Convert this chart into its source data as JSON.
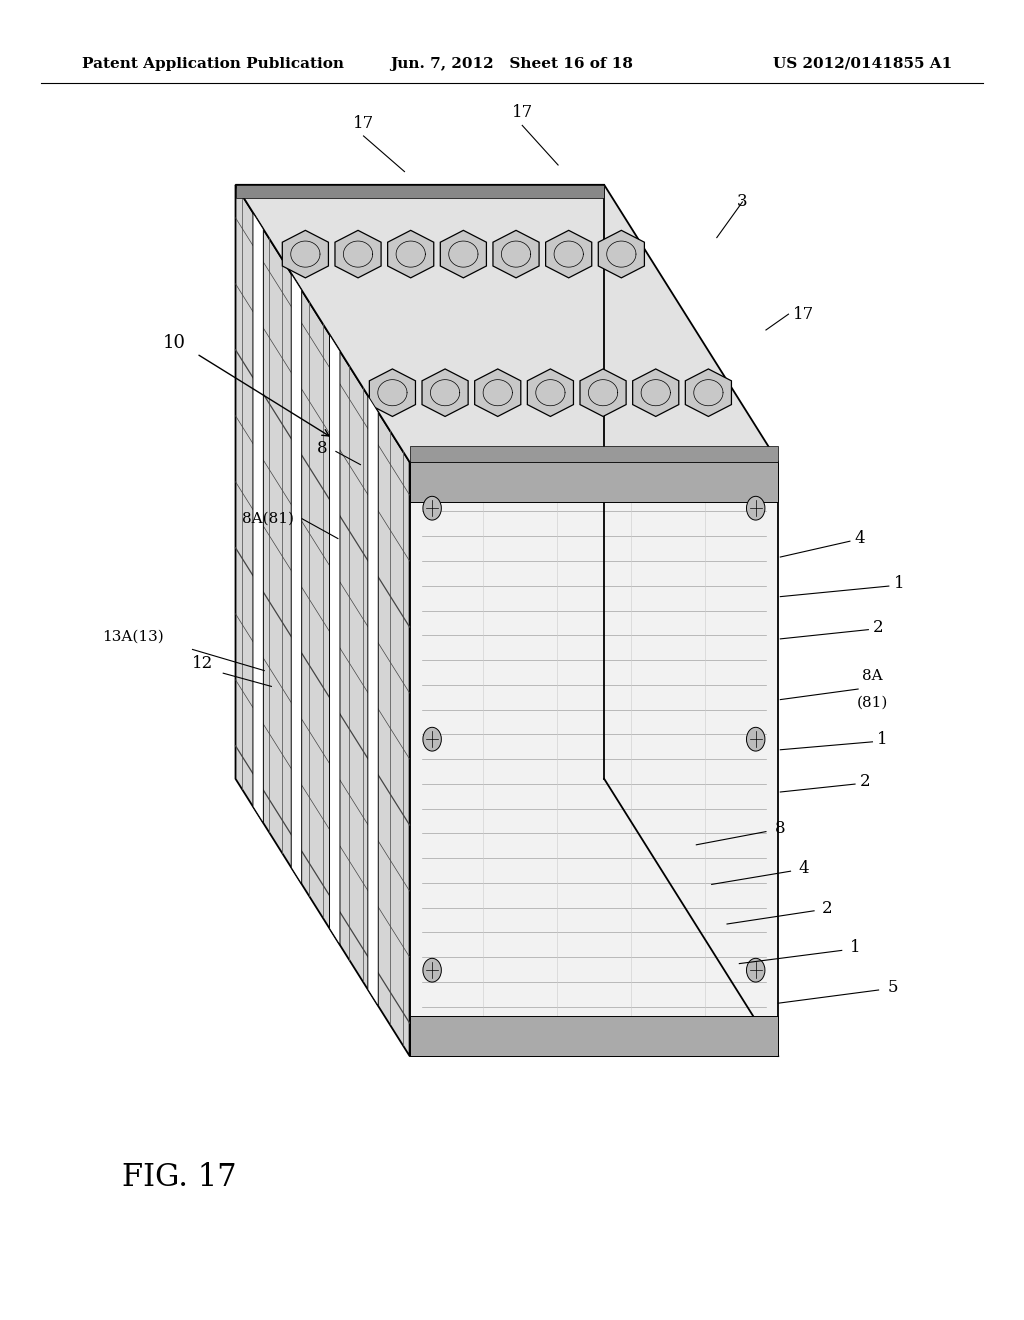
{
  "background_color": "#ffffff",
  "header_left": "Patent Application Publication",
  "header_center": "Jun. 7, 2012   Sheet 16 of 18",
  "header_right": "US 2012/0141855 A1",
  "fig_label": "FIG. 17",
  "title_fontsize": 11,
  "label_fontsize": 12,
  "fig_label_fontsize": 22
}
